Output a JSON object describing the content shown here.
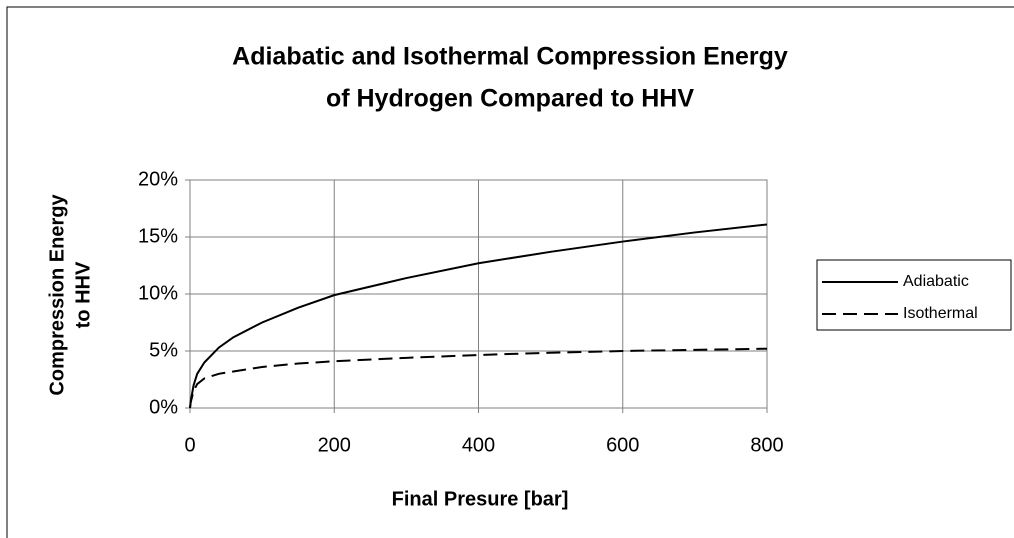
{
  "chart_data": {
    "type": "line",
    "title": [
      "Adiabatic and Isothermal Compression Energy",
      "of Hydrogen Compared to HHV"
    ],
    "x_label": "Final Presure [bar]",
    "y_label": [
      "Compression Energy",
      "to HHV"
    ],
    "x": [
      0,
      1,
      5,
      10,
      20,
      40,
      60,
      100,
      150,
      200,
      300,
      400,
      500,
      600,
      700,
      800
    ],
    "series": [
      {
        "name": "Adiabatic",
        "color": "#000000",
        "line_style": "solid",
        "values": [
          0,
          0.6,
          2.0,
          3.0,
          4.0,
          5.3,
          6.2,
          7.5,
          8.8,
          9.9,
          11.4,
          12.7,
          13.7,
          14.6,
          15.4,
          16.1
        ]
      },
      {
        "name": "Isothermal",
        "color": "#000000",
        "line_style": "dashed",
        "values": [
          0,
          0.5,
          1.5,
          2.1,
          2.6,
          3.0,
          3.2,
          3.6,
          3.9,
          4.1,
          4.4,
          4.65,
          4.85,
          5.0,
          5.1,
          5.2
        ]
      }
    ],
    "xlim": [
      0,
      800
    ],
    "xticks": [
      0,
      200,
      400,
      600,
      800
    ],
    "ylim": [
      0,
      20
    ],
    "yticks": [
      {
        "value": 0,
        "label": "0%"
      },
      {
        "value": 5,
        "label": "5%"
      },
      {
        "value": 10,
        "label": "10%"
      },
      {
        "value": 15,
        "label": "15%"
      },
      {
        "value": 20,
        "label": "20%"
      }
    ],
    "grid": true,
    "legend": "right"
  }
}
